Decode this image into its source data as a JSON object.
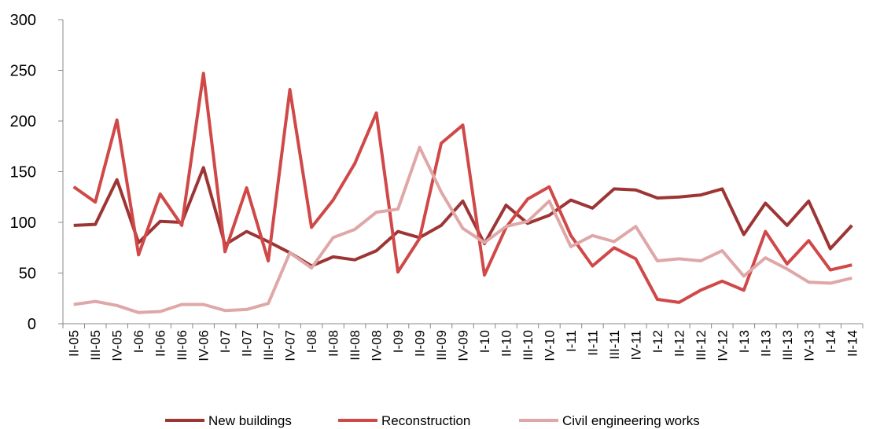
{
  "chart_data": {
    "type": "line",
    "categories": [
      "II-05",
      "III-05",
      "IV-05",
      "I-06",
      "II-06",
      "III-06",
      "IV-06",
      "I-07",
      "II-07",
      "III-07",
      "IV-07",
      "I-08",
      "II-08",
      "III-08",
      "IV-08",
      "I-09",
      "II-09",
      "III-09",
      "IV-09",
      "I-10",
      "II-10",
      "III-10",
      "IV-10",
      "I-11",
      "II-11",
      "III-11",
      "IV-11",
      "I-12",
      "II-12",
      "III-12",
      "IV-12",
      "I-13",
      "II-13",
      "III-13",
      "IV-13",
      "I-14",
      "II-14"
    ],
    "series": [
      {
        "name": "New buildings",
        "color": "#9e3535",
        "values": [
          97,
          98,
          142,
          80,
          101,
          100,
          154,
          78,
          91,
          81,
          70,
          57,
          66,
          63,
          72,
          91,
          85,
          97,
          121,
          79,
          117,
          99,
          107,
          122,
          114,
          133,
          132,
          124,
          125,
          127,
          133,
          88,
          119,
          97,
          121,
          74,
          97
        ]
      },
      {
        "name": "Reconstruction",
        "color": "#d04848",
        "values": [
          135,
          120,
          201,
          68,
          128,
          97,
          247,
          71,
          134,
          62,
          231,
          95,
          122,
          158,
          208,
          51,
          84,
          178,
          196,
          48,
          95,
          123,
          135,
          87,
          57,
          75,
          64,
          24,
          21,
          33,
          42,
          33,
          91,
          59,
          82,
          53,
          58
        ]
      },
      {
        "name": "Civil engineering works",
        "color": "#dfa7a7",
        "values": [
          19,
          22,
          18,
          11,
          12,
          19,
          19,
          13,
          14,
          20,
          70,
          55,
          85,
          93,
          110,
          113,
          174,
          130,
          94,
          80,
          96,
          101,
          121,
          76,
          87,
          81,
          96,
          62,
          64,
          62,
          72,
          47,
          65,
          54,
          41,
          40,
          45
        ]
      }
    ],
    "ylim": [
      0,
      300
    ],
    "yticks": [
      0,
      50,
      100,
      150,
      200,
      250,
      300
    ],
    "legend": "bottom"
  }
}
